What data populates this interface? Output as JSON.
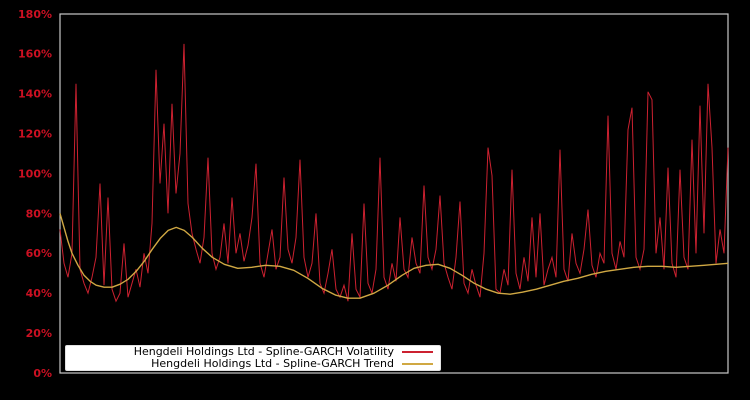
{
  "figure": {
    "background_color": "#000000",
    "plot_border_color": "#c8c8c8",
    "axis_label_color": "#cc1022"
  },
  "legend": {
    "position": "lower-left",
    "background_color": "#ffffff",
    "entries": [
      {
        "label": "Hengdeli Holdings Ltd - Spline-GARCH Volatility",
        "color": "#cc2130"
      },
      {
        "label": "Hengdeli Holdings Ltd - Spline-GARCH Trend",
        "color": "#d0a843"
      }
    ]
  },
  "chart_data": {
    "type": "line",
    "title": "",
    "xlabel": "",
    "ylabel": "",
    "x_tick_labels_visible": false,
    "grid": false,
    "legend_position": "lower-left",
    "axes": {
      "y": {
        "min": 0,
        "max": 180,
        "tick_step": 20,
        "tick_values": [
          0,
          20,
          40,
          60,
          80,
          100,
          120,
          140,
          160,
          180
        ],
        "tick_labels": [
          "0%",
          "20%",
          "40%",
          "60%",
          "80%",
          "100%",
          "120%",
          "140%",
          "160%",
          "180%"
        ],
        "tick_color": "#cc1022",
        "unit": "percent"
      }
    },
    "series": [
      {
        "name": "Hengdeli Holdings Ltd - Spline-GARCH Volatility",
        "color": "#cc2130",
        "line_width": 1,
        "spacing": "even",
        "values": [
          72,
          55,
          48,
          60,
          145,
          52,
          45,
          40,
          48,
          58,
          95,
          44,
          88,
          42,
          36,
          40,
          65,
          38,
          45,
          52,
          43,
          60,
          50,
          75,
          152,
          95,
          125,
          80,
          135,
          90,
          110,
          165,
          85,
          70,
          62,
          55,
          68,
          108,
          60,
          52,
          58,
          75,
          55,
          88,
          60,
          70,
          56,
          64,
          78,
          105,
          55,
          48,
          60,
          72,
          52,
          58,
          98,
          62,
          55,
          68,
          107,
          58,
          48,
          55,
          80,
          45,
          40,
          50,
          62,
          42,
          38,
          44,
          36,
          70,
          42,
          38,
          85,
          45,
          40,
          52,
          108,
          48,
          42,
          55,
          46,
          78,
          52,
          48,
          68,
          55,
          50,
          94,
          58,
          52,
          62,
          89,
          55,
          48,
          42,
          58,
          86,
          45,
          40,
          52,
          44,
          38,
          60,
          113,
          99,
          42,
          40,
          52,
          44,
          102,
          50,
          42,
          58,
          46,
          78,
          48,
          80,
          44,
          52,
          58,
          48,
          112,
          52,
          46,
          70,
          55,
          50,
          62,
          82,
          54,
          48,
          60,
          55,
          129,
          60,
          52,
          66,
          58,
          122,
          133,
          58,
          52,
          62,
          141,
          137,
          60,
          78,
          52,
          103,
          55,
          48,
          102,
          58,
          52,
          117,
          60,
          134,
          70,
          145,
          113,
          55,
          72,
          60,
          113
        ]
      },
      {
        "name": "Hengdeli Holdings Ltd - Spline-GARCH Trend",
        "color": "#d0a843",
        "line_width": 1.4,
        "spacing": "xy-pairs",
        "points": [
          [
            0.0,
            80
          ],
          [
            0.006,
            73
          ],
          [
            0.012,
            66
          ],
          [
            0.018,
            60
          ],
          [
            0.027,
            54
          ],
          [
            0.036,
            49
          ],
          [
            0.045,
            46
          ],
          [
            0.054,
            44
          ],
          [
            0.066,
            43
          ],
          [
            0.078,
            43
          ],
          [
            0.09,
            44.5
          ],
          [
            0.102,
            47
          ],
          [
            0.114,
            51
          ],
          [
            0.126,
            56
          ],
          [
            0.138,
            62
          ],
          [
            0.15,
            67.5
          ],
          [
            0.162,
            71.5
          ],
          [
            0.174,
            73
          ],
          [
            0.186,
            71.5
          ],
          [
            0.198,
            68
          ],
          [
            0.213,
            62.5
          ],
          [
            0.228,
            58
          ],
          [
            0.246,
            54.5
          ],
          [
            0.266,
            52.5
          ],
          [
            0.287,
            53
          ],
          [
            0.308,
            54
          ],
          [
            0.329,
            53.5
          ],
          [
            0.35,
            51.5
          ],
          [
            0.371,
            47.5
          ],
          [
            0.392,
            42.5
          ],
          [
            0.413,
            39
          ],
          [
            0.431,
            37.5
          ],
          [
            0.449,
            37.5
          ],
          [
            0.47,
            40
          ],
          [
            0.491,
            44
          ],
          [
            0.512,
            49
          ],
          [
            0.53,
            52.5
          ],
          [
            0.548,
            54
          ],
          [
            0.566,
            54.5
          ],
          [
            0.584,
            52.5
          ],
          [
            0.602,
            49
          ],
          [
            0.62,
            45
          ],
          [
            0.638,
            42
          ],
          [
            0.656,
            40
          ],
          [
            0.674,
            39.5
          ],
          [
            0.692,
            40.5
          ],
          [
            0.713,
            42
          ],
          [
            0.734,
            44
          ],
          [
            0.754,
            46
          ],
          [
            0.775,
            47.5
          ],
          [
            0.796,
            49.5
          ],
          [
            0.817,
            51
          ],
          [
            0.838,
            52
          ],
          [
            0.859,
            53
          ],
          [
            0.88,
            53.5
          ],
          [
            0.901,
            53.5
          ],
          [
            0.922,
            53
          ],
          [
            0.943,
            53.5
          ],
          [
            0.964,
            54
          ],
          [
            0.982,
            54.5
          ],
          [
            1.0,
            55
          ]
        ]
      }
    ]
  }
}
